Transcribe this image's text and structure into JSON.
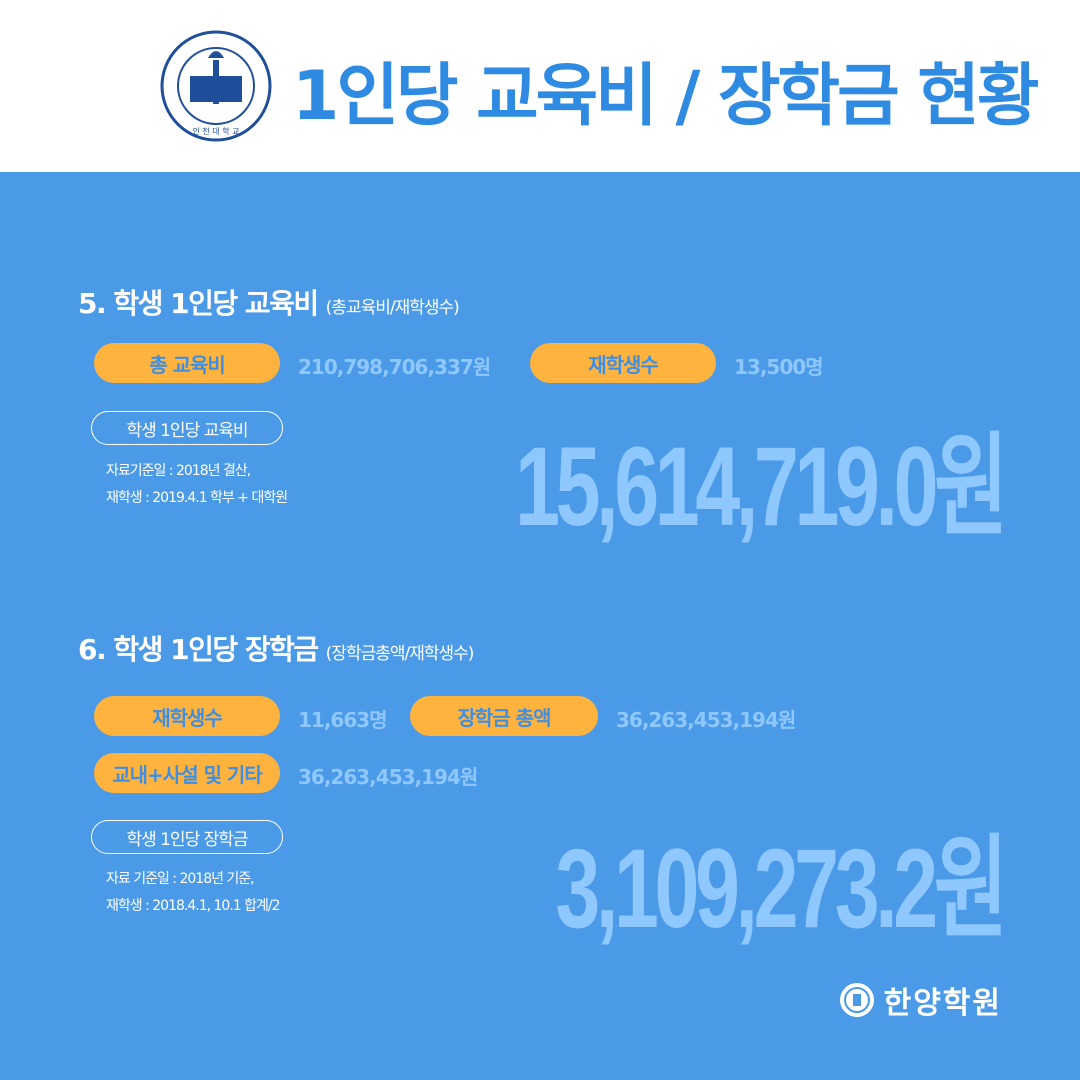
{
  "header": {
    "title": "1인당 교육비 / 장학금 현황",
    "logo_text": "INCHEON NATIONAL UNIVERSITY 인천대학교 VERI LIBER TAS TAS"
  },
  "section5": {
    "title": "5. 학생 1인당 교육비",
    "subtitle": "(총교육비/재학생수)",
    "total_label": "총 교육비",
    "total_value": "210,798,706,337원",
    "students_label": "재학생수",
    "students_value": "13,500명",
    "per_label": "학생 1인당 교육비",
    "note1": "자료기준일 : 2018년 결산,",
    "note2": "재학생 : 2019.4.1 학부 + 대학원",
    "result": "15,614,719.0원"
  },
  "section6": {
    "title": "6. 학생 1인당 장학금",
    "subtitle": "(장학금총액/재학생수)",
    "students_label": "재학생수",
    "students_value": "11,663명",
    "total_label": "장학금 총액",
    "total_value": "36,263,453,194원",
    "other_label": "교내+사설 및 기타",
    "other_value": "36,263,453,194원",
    "per_label": "학생 1인당 장학금",
    "note1": "자료 기준일 : 2018년 기준,",
    "note2": "재학생 : 2018.4.1, 10.1 합계/2",
    "result": "3,109,273.2원"
  },
  "footer": {
    "brand": "한양학원"
  },
  "colors": {
    "background": "#4a9ae8",
    "pill": "#ffb33f",
    "value": "#8fc7ff",
    "title": "#2f8be2"
  }
}
